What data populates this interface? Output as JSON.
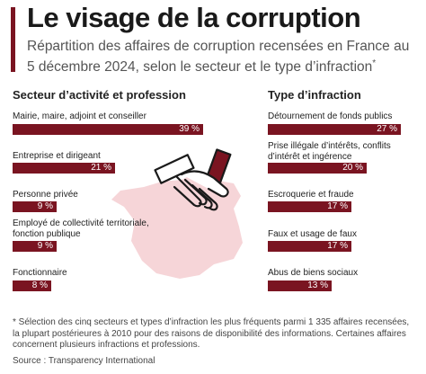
{
  "title": "Le visage de la corruption",
  "subtitle": "Répartition des affaires de corruption recensées en France au 5 décembre 2024, selon le secteur et le type d’infraction",
  "subtitle_mark": "*",
  "footnote": "* Sélection des cinq secteurs et types d’infraction les plus fréquents parmi 1 335 affaires recensées, la plupart postérieures à 2010 pour des raisons de disponibilité des informations. Certaines affaires concernent plusieurs infractions et professions.",
  "source": "Source : Transparency International",
  "colors": {
    "bar": "#7a1421",
    "map": "#f6d5d8",
    "accent": "#7a1421"
  },
  "icons": [
    "handshake-icon",
    "france-map-icon"
  ],
  "chart_data": [
    {
      "type": "bar",
      "orientation": "horizontal",
      "title": "Secteur d’activité et profession",
      "categories": [
        "Mairie, maire, adjoint et conseiller",
        "Entreprise et dirigeant",
        "Personne privée",
        "Employé de collectivité territoriale, fonction publique",
        "Fonctionnaire"
      ],
      "values": [
        39,
        21,
        9,
        9,
        8
      ],
      "value_labels": [
        "39 %",
        "21 %",
        "9 %",
        "9 %",
        "8 %"
      ],
      "xlim": [
        0,
        39
      ]
    },
    {
      "type": "bar",
      "orientation": "horizontal",
      "title": "Type d’infraction",
      "categories": [
        "Détournement de fonds publics",
        "Prise illégale d’intérêts, conflits d’intérêt et ingérence",
        "Escroquerie et fraude",
        "Faux et usage de faux",
        "Abus de biens sociaux"
      ],
      "values": [
        27,
        20,
        17,
        17,
        13
      ],
      "value_labels": [
        "27 %",
        "20 %",
        "17 %",
        "17 %",
        "13 %"
      ],
      "xlim": [
        0,
        27
      ]
    }
  ]
}
